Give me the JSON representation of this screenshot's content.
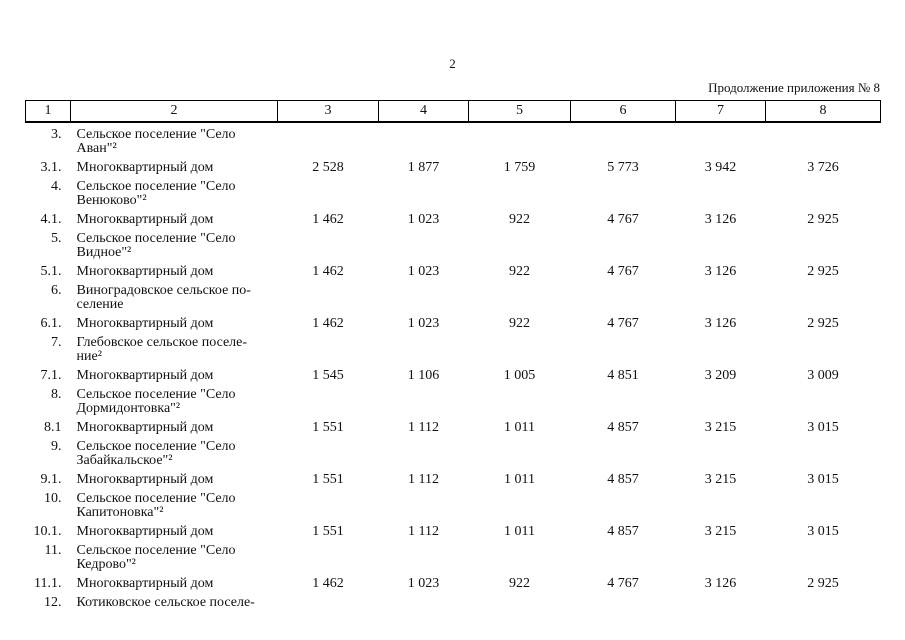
{
  "page": {
    "page_number": "2",
    "continuation_note": "Продолжение приложения № 8"
  },
  "table": {
    "column_numbers": [
      "1",
      "2",
      "3",
      "4",
      "5",
      "6",
      "7",
      "8"
    ],
    "rows": [
      {
        "num": "3.",
        "name": "Сельское поселение \"Село\nАван\"²",
        "values": [
          "",
          "",
          "",
          "",
          "",
          ""
        ]
      },
      {
        "num": "3.1.",
        "name": "Многоквартирный дом",
        "values": [
          "2 528",
          "1 877",
          "1 759",
          "5 773",
          "3 942",
          "3 726"
        ]
      },
      {
        "num": "4.",
        "name": "Сельское поселение \"Село\nВенюково\"²",
        "values": [
          "",
          "",
          "",
          "",
          "",
          ""
        ]
      },
      {
        "num": "4.1.",
        "name": "Многоквартирный дом",
        "values": [
          "1 462",
          "1 023",
          "922",
          "4 767",
          "3 126",
          "2 925"
        ]
      },
      {
        "num": "5.",
        "name": "Сельское поселение \"Село\nВидное\"²",
        "values": [
          "",
          "",
          "",
          "",
          "",
          ""
        ]
      },
      {
        "num": "5.1.",
        "name": "Многоквартирный дом",
        "values": [
          "1 462",
          "1 023",
          "922",
          "4 767",
          "3 126",
          "2 925"
        ]
      },
      {
        "num": "6.",
        "name": "Виноградовское сельское по-\nселение",
        "values": [
          "",
          "",
          "",
          "",
          "",
          ""
        ]
      },
      {
        "num": "6.1.",
        "name": "Многоквартирный дом",
        "values": [
          "1 462",
          "1 023",
          "922",
          "4 767",
          "3 126",
          "2 925"
        ]
      },
      {
        "num": "7.",
        "name": "Глебовское сельское поселе-\nние²",
        "values": [
          "",
          "",
          "",
          "",
          "",
          ""
        ]
      },
      {
        "num": "7.1.",
        "name": "Многоквартирный дом",
        "values": [
          "1 545",
          "1 106",
          "1 005",
          "4 851",
          "3 209",
          "3 009"
        ]
      },
      {
        "num": "8.",
        "name": "Сельское поселение \"Село\nДормидонтовка\"²",
        "values": [
          "",
          "",
          "",
          "",
          "",
          ""
        ]
      },
      {
        "num": "8.1",
        "name": "Многоквартирный дом",
        "values": [
          "1 551",
          "1 112",
          "1 011",
          "4 857",
          "3 215",
          "3 015"
        ]
      },
      {
        "num": "9.",
        "name": "Сельское поселение \"Село\nЗабайкальское\"²",
        "values": [
          "",
          "",
          "",
          "",
          "",
          ""
        ]
      },
      {
        "num": "9.1.",
        "name": "Многоквартирный дом",
        "values": [
          "1 551",
          "1 112",
          "1 011",
          "4 857",
          "3 215",
          "3 015"
        ]
      },
      {
        "num": "10.",
        "name": "Сельское поселение \"Село\nКапитоновка\"²",
        "values": [
          "",
          "",
          "",
          "",
          "",
          ""
        ]
      },
      {
        "num": "10.1.",
        "name": "Многоквартирный дом",
        "values": [
          "1 551",
          "1 112",
          "1 011",
          "4 857",
          "3 215",
          "3 015"
        ]
      },
      {
        "num": "11.",
        "name": "Сельское поселение \"Село\nКедрово\"²",
        "values": [
          "",
          "",
          "",
          "",
          "",
          ""
        ]
      },
      {
        "num": "11.1.",
        "name": "Многоквартирный дом",
        "values": [
          "1 462",
          "1 023",
          "922",
          "4 767",
          "3 126",
          "2 925"
        ]
      },
      {
        "num": "12.",
        "name": "Котиковское сельское поселе-",
        "values": [
          "",
          "",
          "",
          "",
          "",
          ""
        ]
      }
    ]
  }
}
